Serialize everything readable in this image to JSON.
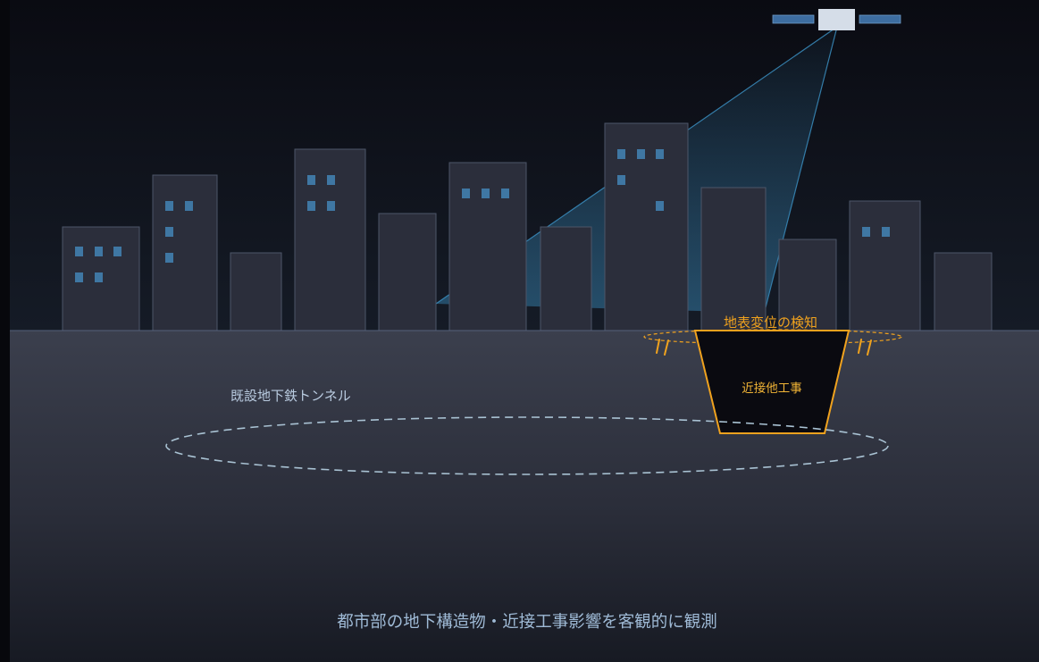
{
  "labels": {
    "tunnel": "既設地下鉄トンネル",
    "surface_detection": "地表変位の検知",
    "construction": "近接他工事",
    "caption": "都市部の地下構造物・近接工事影響を客観的に観測"
  },
  "colors": {
    "sky_top": "#0a0b12",
    "sky_bottom": "#141a25",
    "ground_top": "#3a3e4c",
    "ground_bottom": "#181b24",
    "building_fill": "#2b2e3b",
    "building_stroke": "#4c5568",
    "window": "#3f77a3",
    "beam": "#3a8ec0",
    "accent_orange": "#f0a21e",
    "tunnel_outline": "#a9c2d3",
    "satellite_panel": "#3d6da0",
    "satellite_body": "#d5dde8"
  },
  "icons": {
    "satellite": "satellite-icon"
  }
}
